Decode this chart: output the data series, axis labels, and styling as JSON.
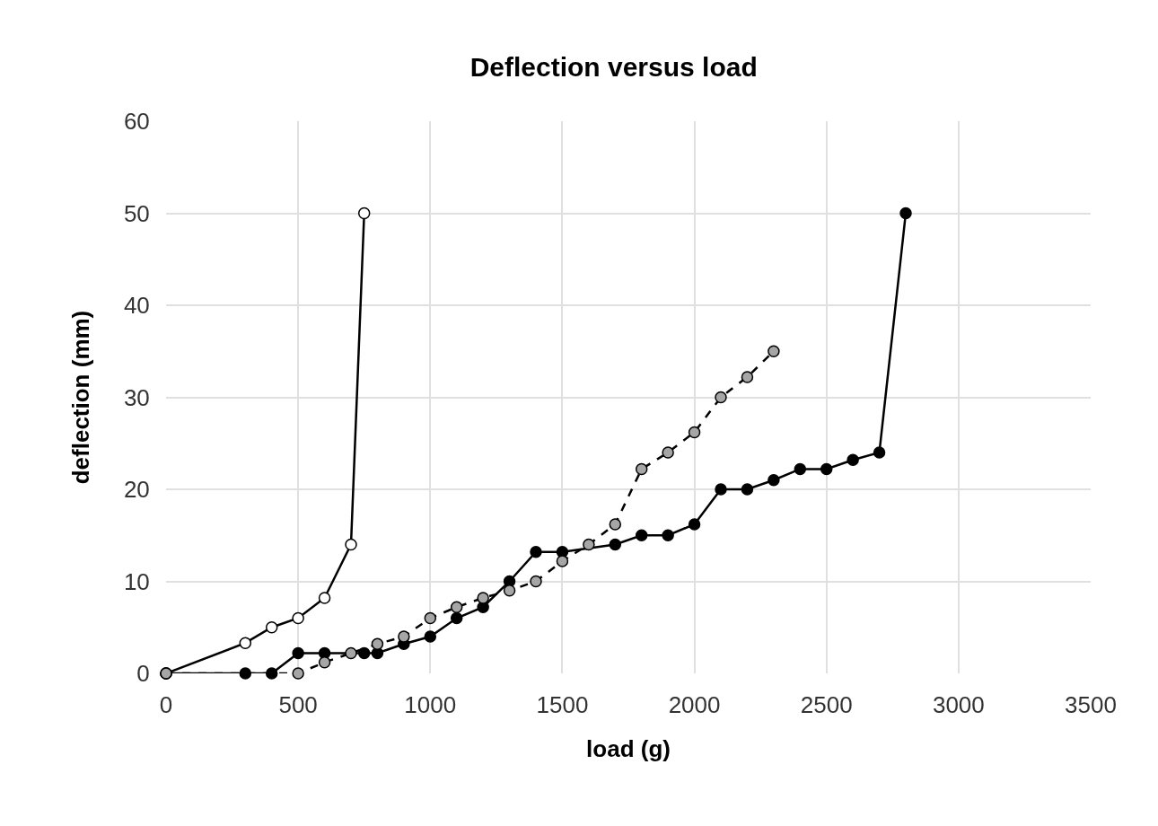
{
  "chart_data": {
    "type": "line",
    "title": "Deflection versus load",
    "xlabel": "load (g)",
    "ylabel": "deflection (mm)",
    "xlim": [
      0,
      3500
    ],
    "xticks": [
      0,
      500,
      1000,
      1500,
      2000,
      2500,
      3000,
      3500
    ],
    "ylim": [
      0,
      60
    ],
    "yticks": [
      0,
      10,
      20,
      30,
      40,
      50,
      60
    ],
    "grid": true,
    "marker": "circle",
    "series": [
      {
        "color": "#ffffff",
        "line_style": "solid",
        "x": [
          0,
          300,
          400,
          500,
          600,
          700,
          750
        ],
        "values": [
          0,
          3.3,
          5,
          6,
          8.2,
          14,
          50
        ]
      },
      {
        "color": "#000000",
        "line_style": "solid",
        "x": [
          0,
          300,
          400,
          500,
          600,
          750,
          800,
          900,
          1000,
          1100,
          1200,
          1300,
          1400,
          1500,
          1700,
          1800,
          1900,
          2000,
          2100,
          2200,
          2300,
          2400,
          2500,
          2600,
          2700,
          2800
        ],
        "values": [
          0,
          0,
          0,
          2.2,
          2.2,
          2.2,
          2.2,
          3.2,
          4,
          6,
          7.2,
          10,
          13.2,
          13.2,
          14,
          15,
          15,
          16.2,
          20,
          20,
          21,
          22.2,
          22.2,
          23.2,
          24,
          50
        ]
      },
      {
        "color": "#a6a6a6",
        "line_style": "dashed",
        "x": [
          0,
          500,
          600,
          700,
          800,
          900,
          1000,
          1100,
          1200,
          1300,
          1400,
          1500,
          1600,
          1700,
          1800,
          1900,
          2000,
          2100,
          2200,
          2300
        ],
        "values": [
          0,
          0,
          1.2,
          2.2,
          3.2,
          4,
          6,
          7.2,
          8.2,
          9,
          10,
          12.2,
          14,
          16.2,
          22.2,
          24,
          26.2,
          30,
          32.2,
          35
        ]
      }
    ]
  }
}
